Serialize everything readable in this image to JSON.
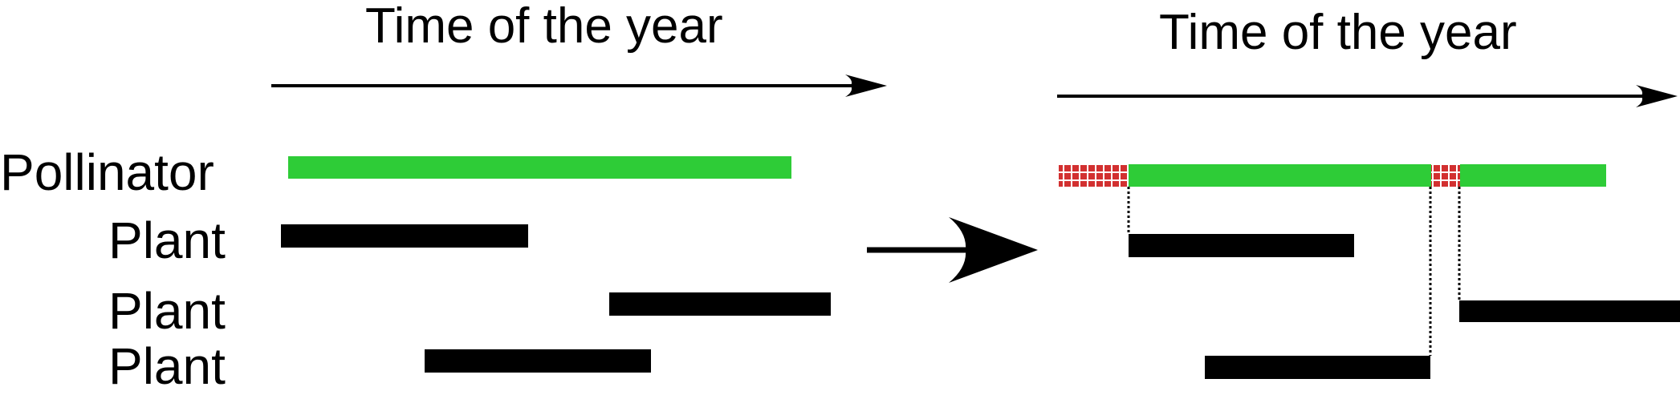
{
  "left_panel": {
    "title": "Time of the year",
    "labels": [
      "Pollinator",
      "Plant",
      "Plant",
      "Plant"
    ]
  },
  "right_panel": {
    "title": "Time of the year"
  },
  "colors": {
    "pollinator": "#2ecc37",
    "plant": "#000000",
    "mismatch": "#d23030",
    "axis": "#000000"
  }
}
